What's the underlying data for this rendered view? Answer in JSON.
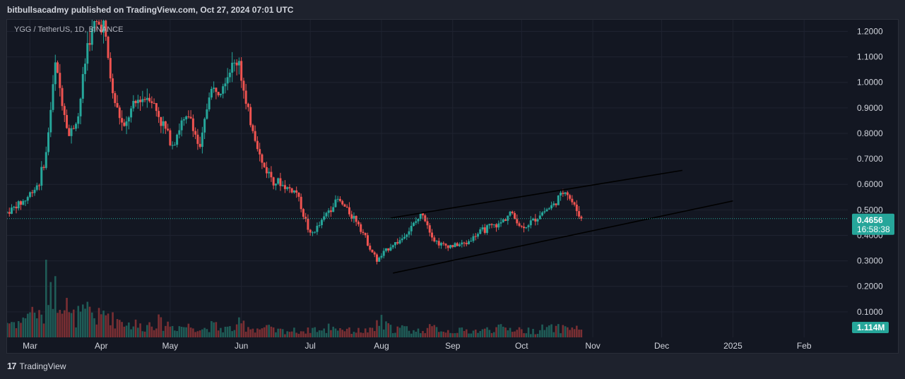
{
  "header": {
    "publish_line": "bitbullsacadmy published on TradingView.com, Oct 27, 2024 07:01 UTC"
  },
  "footer": {
    "logo_glyph": "17",
    "brand": "TradingView"
  },
  "colors": {
    "up": "#26a69a",
    "down": "#ef5350",
    "vol_up": "#1f5c57",
    "vol_down": "#7a2f33",
    "grid": "#1f2330",
    "text": "#d1d4dc",
    "trendline": "#000000",
    "price_badge": "#26a69a",
    "price_line": "#26a69a"
  },
  "chart_data": {
    "type": "candlestick",
    "symbol_label": "YGG / TetherUS, 1D, BINANCE",
    "y_ticks": [
      "1.2000",
      "1.1000",
      "1.0000",
      "0.9000",
      "0.8000",
      "0.7000",
      "0.6000",
      "0.5000",
      "0.4000",
      "0.3000",
      "0.2000",
      "0.1000"
    ],
    "ylim": [
      0,
      1.24
    ],
    "x_ticks": [
      "Mar",
      "Apr",
      "May",
      "Jun",
      "Jul",
      "Aug",
      "Sep",
      "Oct",
      "Nov",
      "Dec",
      "2025",
      "Feb"
    ],
    "x_range": [
      "2024-02-20",
      "2025-02-20"
    ],
    "last_price": "0.4656",
    "countdown": "16:58:38",
    "volume_label": "1.114M",
    "series": [
      {
        "x": [
          "2024-02-20",
          "2024-02-28",
          "2024-03-05",
          "2024-03-08",
          "2024-03-12",
          "2024-03-18",
          "2024-03-22",
          "2024-03-26",
          "2024-03-29",
          "2024-04-02",
          "2024-04-06",
          "2024-04-11",
          "2024-04-13",
          "2024-04-17",
          "2024-04-22",
          "2024-04-27",
          "2024-05-02",
          "2024-05-06",
          "2024-05-10",
          "2024-05-14",
          "2024-05-18",
          "2024-05-22",
          "2024-05-27",
          "2024-05-31",
          "2024-06-03",
          "2024-06-06",
          "2024-06-10",
          "2024-06-15",
          "2024-06-20",
          "2024-06-25",
          "2024-07-01",
          "2024-07-05",
          "2024-07-09",
          "2024-07-13",
          "2024-07-18",
          "2024-07-22",
          "2024-07-26",
          "2024-07-30",
          "2024-08-02",
          "2024-08-05",
          "2024-08-09",
          "2024-08-14",
          "2024-08-19",
          "2024-08-24",
          "2024-08-28",
          "2024-09-02",
          "2024-09-07",
          "2024-09-11",
          "2024-09-16",
          "2024-09-21",
          "2024-09-26",
          "2024-10-01",
          "2024-10-05",
          "2024-10-10",
          "2024-10-15",
          "2024-10-20",
          "2024-10-23",
          "2024-10-27"
        ],
        "close": [
          0.49,
          0.54,
          0.61,
          0.72,
          1.07,
          0.79,
          0.87,
          1.15,
          1.22,
          1.23,
          0.95,
          0.81,
          0.87,
          0.93,
          0.95,
          0.85,
          0.76,
          0.84,
          0.86,
          0.73,
          0.96,
          0.98,
          1.05,
          1.09,
          0.9,
          0.82,
          0.68,
          0.62,
          0.59,
          0.57,
          0.4,
          0.44,
          0.5,
          0.54,
          0.49,
          0.45,
          0.37,
          0.3,
          0.33,
          0.36,
          0.38,
          0.43,
          0.49,
          0.38,
          0.36,
          0.36,
          0.37,
          0.4,
          0.43,
          0.44,
          0.49,
          0.43,
          0.45,
          0.49,
          0.52,
          0.58,
          0.53,
          0.4656
        ],
        "volume": [
          0.07,
          0.12,
          0.09,
          0.26,
          0.2,
          0.09,
          0.1,
          0.12,
          0.09,
          0.11,
          0.08,
          0.07,
          0.06,
          0.05,
          0.07,
          0.06,
          0.05,
          0.05,
          0.05,
          0.04,
          0.05,
          0.04,
          0.04,
          0.06,
          0.05,
          0.04,
          0.04,
          0.03,
          0.03,
          0.03,
          0.04,
          0.03,
          0.05,
          0.04,
          0.03,
          0.03,
          0.03,
          0.07,
          0.05,
          0.04,
          0.04,
          0.03,
          0.04,
          0.04,
          0.03,
          0.03,
          0.03,
          0.03,
          0.04,
          0.04,
          0.04,
          0.03,
          0.03,
          0.04,
          0.04,
          0.05,
          0.04,
          0.03
        ]
      }
    ],
    "trendlines": [
      {
        "from": [
          "2024-08-06",
          0.252
        ],
        "to": [
          "2025-01-01",
          0.535
        ]
      },
      {
        "from": [
          "2024-08-05",
          0.468
        ],
        "to": [
          "2024-12-10",
          0.655
        ]
      }
    ]
  }
}
